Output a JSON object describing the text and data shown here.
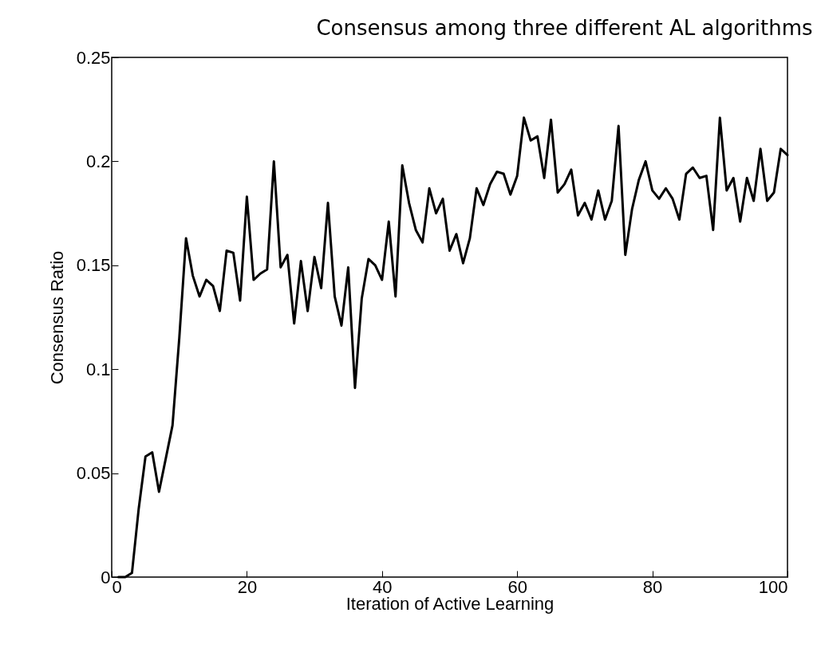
{
  "chart_data": {
    "type": "line",
    "title": "Consensus among three different AL algorithms",
    "xlabel": "Iteration of Active Learning",
    "ylabel": "Consensus Ratio",
    "x": [
      1,
      2,
      3,
      4,
      5,
      6,
      7,
      8,
      9,
      10,
      11,
      12,
      13,
      14,
      15,
      16,
      17,
      18,
      19,
      20,
      21,
      22,
      23,
      24,
      25,
      26,
      27,
      28,
      29,
      30,
      31,
      32,
      33,
      34,
      35,
      36,
      37,
      38,
      39,
      40,
      41,
      42,
      43,
      44,
      45,
      46,
      47,
      48,
      49,
      50,
      51,
      52,
      53,
      54,
      55,
      56,
      57,
      58,
      59,
      60,
      61,
      62,
      63,
      64,
      65,
      66,
      67,
      68,
      69,
      70,
      71,
      72,
      73,
      74,
      75,
      76,
      77,
      78,
      79,
      80,
      81,
      82,
      83,
      84,
      85,
      86,
      87,
      88,
      89,
      90,
      91,
      92,
      93,
      94,
      95,
      96,
      97,
      98,
      99,
      100
    ],
    "series": [
      {
        "color": "#000000",
        "values": [
          0,
          0,
          0.002,
          0.033,
          0.058,
          0.06,
          0.041,
          0.057,
          0.073,
          0.115,
          0.163,
          0.145,
          0.135,
          0.143,
          0.14,
          0.128,
          0.157,
          0.156,
          0.133,
          0.183,
          0.143,
          0.146,
          0.148,
          0.2,
          0.149,
          0.155,
          0.122,
          0.152,
          0.128,
          0.154,
          0.139,
          0.18,
          0.135,
          0.121,
          0.149,
          0.091,
          0.134,
          0.153,
          0.15,
          0.143,
          0.171,
          0.135,
          0.198,
          0.18,
          0.167,
          0.161,
          0.187,
          0.175,
          0.182,
          0.157,
          0.165,
          0.151,
          0.163,
          0.187,
          0.179,
          0.189,
          0.195,
          0.194,
          0.184,
          0.193,
          0.221,
          0.21,
          0.212,
          0.192,
          0.22,
          0.185,
          0.189,
          0.196,
          0.174,
          0.18,
          0.172,
          0.186,
          0.172,
          0.181,
          0.217,
          0.155,
          0.177,
          0.191,
          0.2,
          0.186,
          0.182,
          0.187,
          0.182,
          0.172,
          0.194,
          0.197,
          0.192,
          0.193,
          0.167,
          0.221,
          0.186,
          0.192,
          0.171,
          0.192,
          0.181,
          0.206,
          0.181,
          0.185,
          0.206,
          0.203
        ]
      }
    ],
    "xlim": [
      0,
      100
    ],
    "xticks": [
      0,
      20,
      40,
      60,
      80,
      100
    ],
    "ylim": [
      0,
      0.25
    ],
    "yticks": [
      0,
      0.05,
      0.1,
      0.15,
      0.2,
      0.25
    ],
    "grid": false,
    "legend": false,
    "marker": "none",
    "line_style": "solid"
  }
}
